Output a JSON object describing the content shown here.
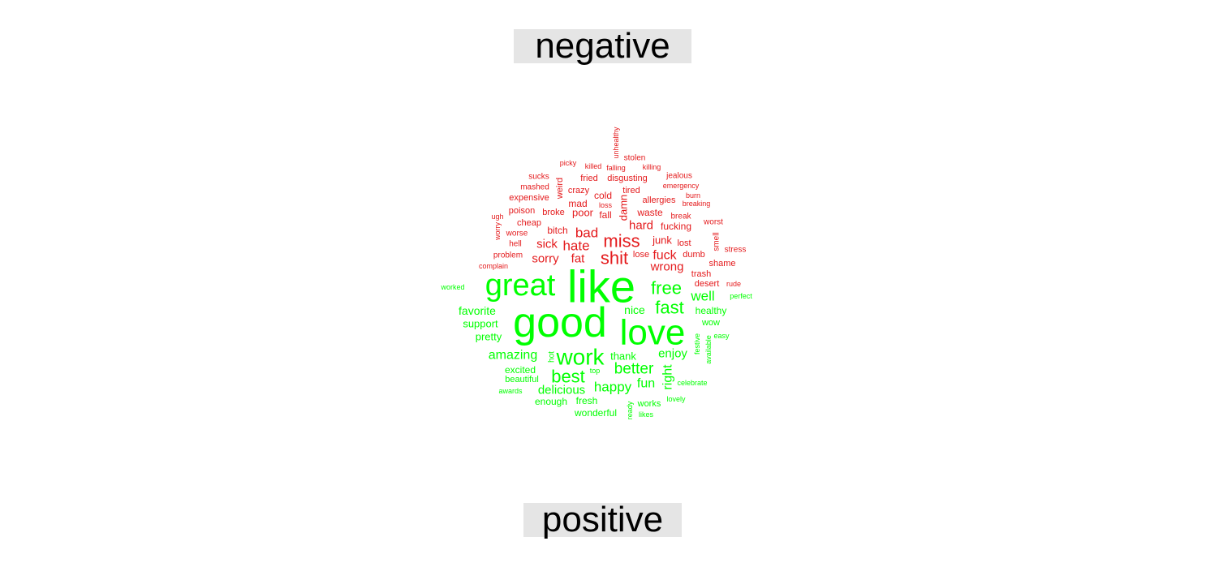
{
  "chart_data": {
    "type": "wordcloud",
    "title": "",
    "groups": [
      {
        "name": "negative",
        "color": "#e41a1c",
        "words": [
          "miss",
          "shit",
          "bad",
          "hate",
          "fuck",
          "fat",
          "sick",
          "sorry",
          "wrong",
          "hard",
          "bitch",
          "junk",
          "poor",
          "fall",
          "damn",
          "waste",
          "fucking",
          "mad",
          "cold",
          "crazy",
          "tired",
          "allergies",
          "cheap",
          "broke",
          "poison",
          "expensive",
          "weird",
          "fried",
          "disgusting",
          "sucks",
          "mashed",
          "killed",
          "falling",
          "stolen",
          "killing",
          "picky",
          "jealous",
          "emergency",
          "burn",
          "breaking",
          "loss",
          "break",
          "worst",
          "ugh",
          "worse",
          "worry",
          "hell",
          "problem",
          "complain",
          "lose",
          "lost",
          "dumb",
          "smell",
          "stress",
          "shame",
          "trash",
          "desert",
          "rude",
          "unhealthy"
        ]
      },
      {
        "name": "positive",
        "color": "#00ff00",
        "words": [
          "like",
          "good",
          "great",
          "love",
          "work",
          "free",
          "fast",
          "best",
          "better",
          "well",
          "nice",
          "amazing",
          "enjoy",
          "happy",
          "fun",
          "right",
          "favorite",
          "support",
          "delicious",
          "thank",
          "healthy",
          "pretty",
          "excited",
          "beautiful",
          "enough",
          "fresh",
          "wonderful",
          "works",
          "wow",
          "easy",
          "festive",
          "available",
          "hot",
          "top",
          "celebrate",
          "lovely",
          "awards",
          "ready",
          "likes",
          "worked",
          "perfect"
        ]
      }
    ]
  }
}
